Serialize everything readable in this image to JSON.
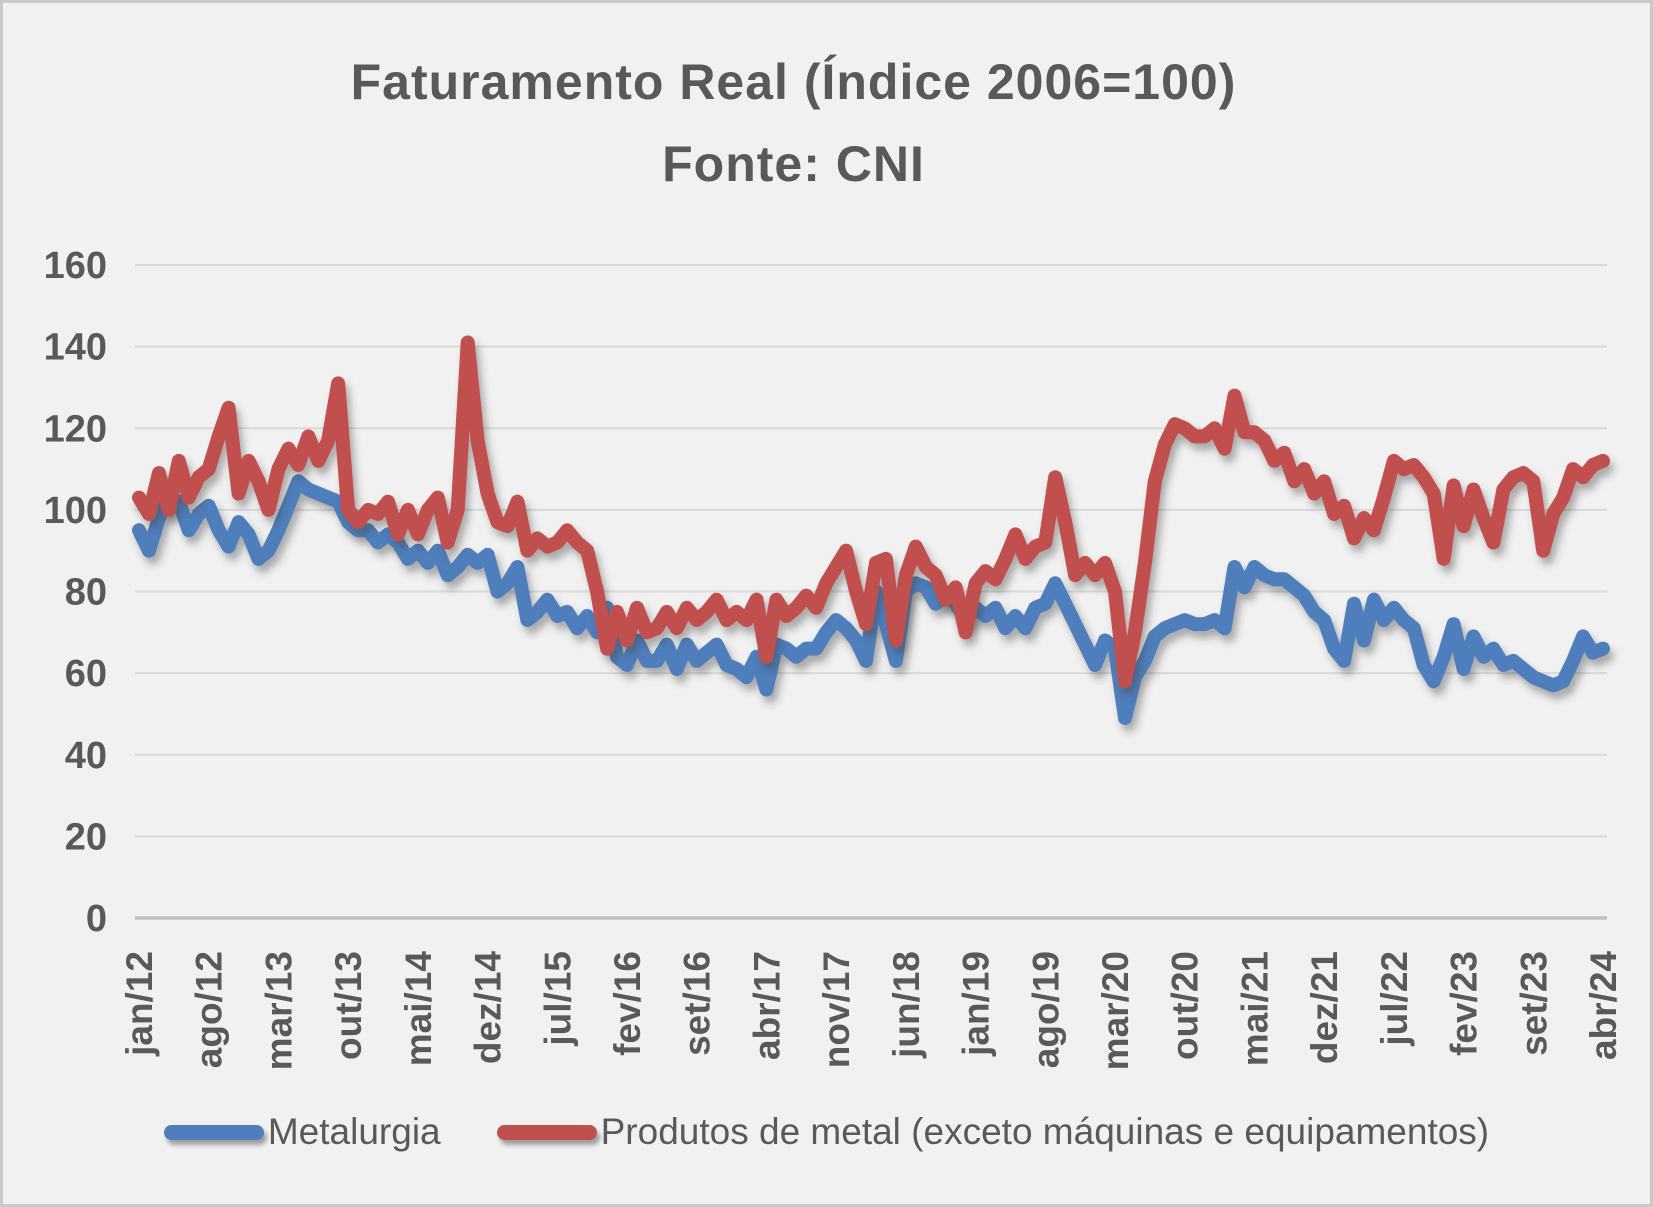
{
  "title": {
    "line1": "Faturamento Real (Índice 2006=100)",
    "line2": "Fonte: CNI"
  },
  "legend": {
    "items": [
      {
        "label": "Metalurgia",
        "color": "#4F7EBC"
      },
      {
        "label": "Produtos de metal (exceto máquinas e equipamentos)",
        "color": "#C0504D"
      }
    ]
  },
  "chart_data": {
    "type": "line",
    "title": "Faturamento Real (Índice 2006=100) Fonte: CNI",
    "xlabel": "",
    "ylabel": "",
    "ylim": [
      0,
      160
    ],
    "ytick_step": 20,
    "y_ticks": [
      0,
      20,
      40,
      60,
      80,
      100,
      120,
      140,
      160
    ],
    "grid": true,
    "legend_position": "bottom",
    "x_start": "jan/12",
    "x_end": "abr/24",
    "n_points": 148,
    "x_tick_every_months": 7,
    "x_tick_labels": [
      "jan/12",
      "ago/12",
      "mar/13",
      "out/13",
      "mai/14",
      "dez/14",
      "jul/15",
      "fev/16",
      "set/16",
      "abr/17",
      "nov/17",
      "jun/18",
      "jan/19",
      "ago/19",
      "mar/20",
      "out/20",
      "mai/21",
      "dez/21",
      "jul/22",
      "fev/23",
      "set/23",
      "abr/24"
    ],
    "series": [
      {
        "name": "Metalurgia",
        "color": "#4F7EBC",
        "values": [
          95,
          90,
          98,
          103,
          102,
          95,
          99,
          101,
          95,
          91,
          97,
          94,
          88,
          90,
          95,
          101,
          107,
          105,
          104,
          103,
          102,
          97,
          95,
          95,
          92,
          94,
          92,
          88,
          90,
          87,
          90,
          84,
          86,
          89,
          87,
          89,
          80,
          82,
          86,
          73,
          75,
          78,
          74,
          75,
          71,
          74,
          70,
          76,
          64,
          62,
          68,
          63,
          63,
          67,
          61,
          67,
          63,
          65,
          67,
          62,
          61,
          59,
          64,
          56,
          67,
          66,
          64,
          66,
          66,
          70,
          73,
          71,
          68,
          63,
          80,
          72,
          63,
          80,
          82,
          81,
          77,
          79,
          77,
          73,
          76,
          74,
          76,
          71,
          74,
          71,
          76,
          77,
          82,
          77,
          72,
          67,
          62,
          68,
          66,
          49,
          59,
          63,
          69,
          71,
          72,
          73,
          72,
          72,
          73,
          71,
          86,
          81,
          86,
          84,
          83,
          83,
          81,
          79,
          75,
          73,
          66,
          63,
          77,
          68,
          78,
          73,
          76,
          73,
          71,
          62,
          58,
          64,
          72,
          61,
          69,
          64,
          66,
          62,
          63,
          61,
          59,
          58,
          57,
          58,
          63,
          69,
          65,
          66
        ]
      },
      {
        "name": "Produtos de metal (exceto máquinas e equipamentos)",
        "color": "#C0504D",
        "values": [
          103,
          99,
          109,
          100,
          112,
          103,
          108,
          110,
          118,
          125,
          104,
          112,
          107,
          100,
          110,
          115,
          111,
          118,
          112,
          117,
          131,
          100,
          97,
          100,
          99,
          102,
          94,
          100,
          94,
          100,
          103,
          92,
          100,
          141,
          117,
          104,
          97,
          96,
          102,
          90,
          93,
          91,
          92,
          95,
          92,
          90,
          80,
          66,
          75,
          68,
          76,
          70,
          71,
          75,
          71,
          76,
          73,
          75,
          78,
          73,
          75,
          73,
          78,
          64,
          78,
          74,
          76,
          79,
          76,
          82,
          86,
          90,
          80,
          72,
          87,
          88,
          68,
          84,
          91,
          86,
          84,
          78,
          81,
          70,
          82,
          85,
          83,
          88,
          94,
          88,
          91,
          92,
          108,
          97,
          84,
          87,
          84,
          87,
          80,
          58,
          70,
          87,
          107,
          116,
          121,
          120,
          118,
          118,
          120,
          115,
          128,
          119,
          119,
          117,
          112,
          114,
          107,
          110,
          104,
          107,
          99,
          101,
          93,
          98,
          95,
          103,
          112,
          110,
          111,
          108,
          104,
          88,
          106,
          96,
          105,
          98,
          92,
          105,
          108,
          109,
          107,
          90,
          99,
          103,
          110,
          108,
          111,
          112
        ]
      }
    ],
    "style": {
      "background": "#F1F1F1",
      "gridline_color": "#D9D9D9",
      "axis_line_color": "#BFBFBF",
      "text_color": "#595959",
      "line_width": 14
    }
  }
}
